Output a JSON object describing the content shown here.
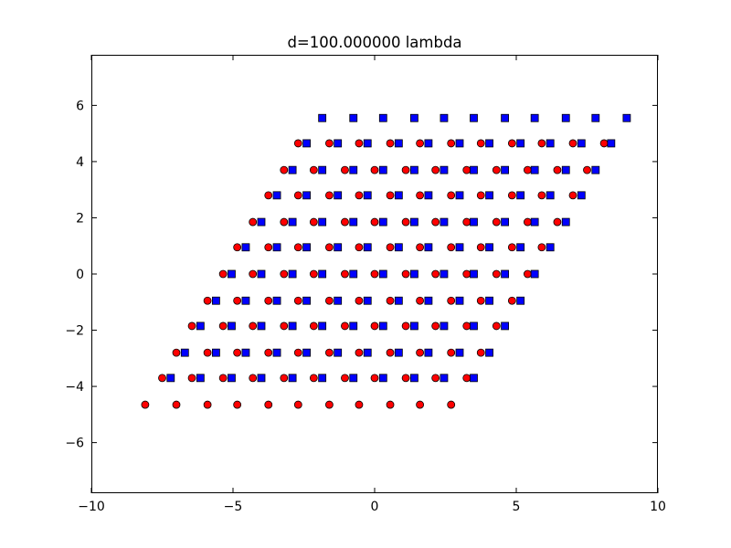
{
  "chart_data": {
    "type": "scatter",
    "title": "d=100.000000 lambda",
    "xlabel": "",
    "ylabel": "",
    "xlim": [
      -10,
      10
    ],
    "ylim": [
      -7.8,
      7.8
    ],
    "xticks": [
      -10,
      -5,
      0,
      5,
      10
    ],
    "yticks": [
      -6,
      -4,
      -2,
      0,
      2,
      4,
      6
    ],
    "xtick_labels": [
      "−10",
      "−5",
      "0",
      "5",
      "10"
    ],
    "ytick_labels": [
      "−6",
      "−4",
      "−2",
      "0",
      "2",
      "4",
      "6"
    ],
    "grid": false,
    "legend": "none",
    "series": [
      {
        "marker": "circle",
        "color": "#ff0000",
        "edge_color": "#000000",
        "rows": [
          {
            "y": -4.65,
            "x": [
              -8.1,
              -7.0,
              -5.9,
              -4.85,
              -3.75,
              -2.7,
              -1.6,
              -0.55,
              0.55,
              1.6,
              2.7
            ]
          },
          {
            "y": -3.7,
            "x": [
              -7.5,
              -6.45,
              -5.35,
              -4.3,
              -3.2,
              -2.15,
              -1.05,
              0.0,
              1.1,
              2.15,
              3.25
            ]
          },
          {
            "y": -2.8,
            "x": [
              -7.0,
              -5.9,
              -4.85,
              -3.75,
              -2.7,
              -1.6,
              -0.55,
              0.55,
              1.6,
              2.7,
              3.75
            ]
          },
          {
            "y": -1.85,
            "x": [
              -6.45,
              -5.35,
              -4.3,
              -3.2,
              -2.15,
              -1.05,
              0.0,
              1.1,
              2.15,
              3.25,
              4.3
            ]
          },
          {
            "y": -0.95,
            "x": [
              -5.9,
              -4.85,
              -3.75,
              -2.7,
              -1.6,
              -0.55,
              0.55,
              1.6,
              2.7,
              3.75,
              4.85
            ]
          },
          {
            "y": 0.0,
            "x": [
              -5.35,
              -4.3,
              -3.2,
              -2.15,
              -1.05,
              0.0,
              1.1,
              2.15,
              3.25,
              4.3,
              5.4
            ]
          },
          {
            "y": 0.95,
            "x": [
              -4.85,
              -3.75,
              -2.7,
              -1.6,
              -0.55,
              0.55,
              1.6,
              2.7,
              3.75,
              4.85,
              5.9
            ]
          },
          {
            "y": 1.85,
            "x": [
              -4.3,
              -3.2,
              -2.15,
              -1.05,
              0.0,
              1.1,
              2.15,
              3.25,
              4.3,
              5.4,
              6.45
            ]
          },
          {
            "y": 2.8,
            "x": [
              -3.75,
              -2.7,
              -1.6,
              -0.55,
              0.55,
              1.6,
              2.7,
              3.75,
              4.85,
              5.9,
              7.0
            ]
          },
          {
            "y": 3.7,
            "x": [
              -3.2,
              -2.15,
              -1.05,
              0.0,
              1.1,
              2.15,
              3.25,
              4.3,
              5.4,
              6.45,
              7.5
            ]
          },
          {
            "y": 4.65,
            "x": [
              -2.7,
              -1.6,
              -0.55,
              0.55,
              1.6,
              2.7,
              3.75,
              4.85,
              5.9,
              7.0,
              8.1
            ]
          }
        ]
      },
      {
        "marker": "square",
        "color": "#0000ff",
        "edge_color": "#000000",
        "rows": [
          {
            "y": -3.7,
            "x": [
              -7.2,
              -6.15,
              -5.05,
              -4.0,
              -2.9,
              -1.85,
              -0.75,
              0.3,
              1.4,
              2.45,
              3.5
            ]
          },
          {
            "y": -2.8,
            "x": [
              -6.7,
              -5.6,
              -4.55,
              -3.45,
              -2.4,
              -1.3,
              -0.25,
              0.85,
              1.9,
              3.0,
              4.05
            ]
          },
          {
            "y": -1.85,
            "x": [
              -6.15,
              -5.05,
              -4.0,
              -2.9,
              -1.85,
              -0.75,
              0.3,
              1.4,
              2.45,
              3.5,
              4.6
            ]
          },
          {
            "y": -0.95,
            "x": [
              -5.6,
              -4.55,
              -3.45,
              -2.4,
              -1.3,
              -0.25,
              0.85,
              1.9,
              3.0,
              4.05,
              5.15
            ]
          },
          {
            "y": 0.0,
            "x": [
              -5.05,
              -4.0,
              -2.9,
              -1.85,
              -0.75,
              0.3,
              1.4,
              2.45,
              3.5,
              4.6,
              5.65
            ]
          },
          {
            "y": 0.95,
            "x": [
              -4.55,
              -3.45,
              -2.4,
              -1.3,
              -0.25,
              0.85,
              1.9,
              3.0,
              4.05,
              5.15,
              6.2
            ]
          },
          {
            "y": 1.85,
            "x": [
              -4.0,
              -2.9,
              -1.85,
              -0.75,
              0.3,
              1.4,
              2.45,
              3.5,
              4.6,
              5.65,
              6.75
            ]
          },
          {
            "y": 2.8,
            "x": [
              -3.45,
              -2.4,
              -1.3,
              -0.25,
              0.85,
              1.9,
              3.0,
              4.05,
              5.15,
              6.2,
              7.3
            ]
          },
          {
            "y": 3.7,
            "x": [
              -2.9,
              -1.85,
              -0.75,
              0.3,
              1.4,
              2.45,
              3.5,
              4.6,
              5.65,
              6.75,
              7.8
            ]
          },
          {
            "y": 4.65,
            "x": [
              -2.4,
              -1.3,
              -0.25,
              0.85,
              1.9,
              3.0,
              4.05,
              5.15,
              6.2,
              7.3,
              8.35
            ]
          },
          {
            "y": 5.55,
            "x": [
              -1.85,
              -0.75,
              0.3,
              1.4,
              2.45,
              3.5,
              4.6,
              5.65,
              6.75,
              7.8,
              8.9
            ]
          }
        ]
      }
    ]
  }
}
